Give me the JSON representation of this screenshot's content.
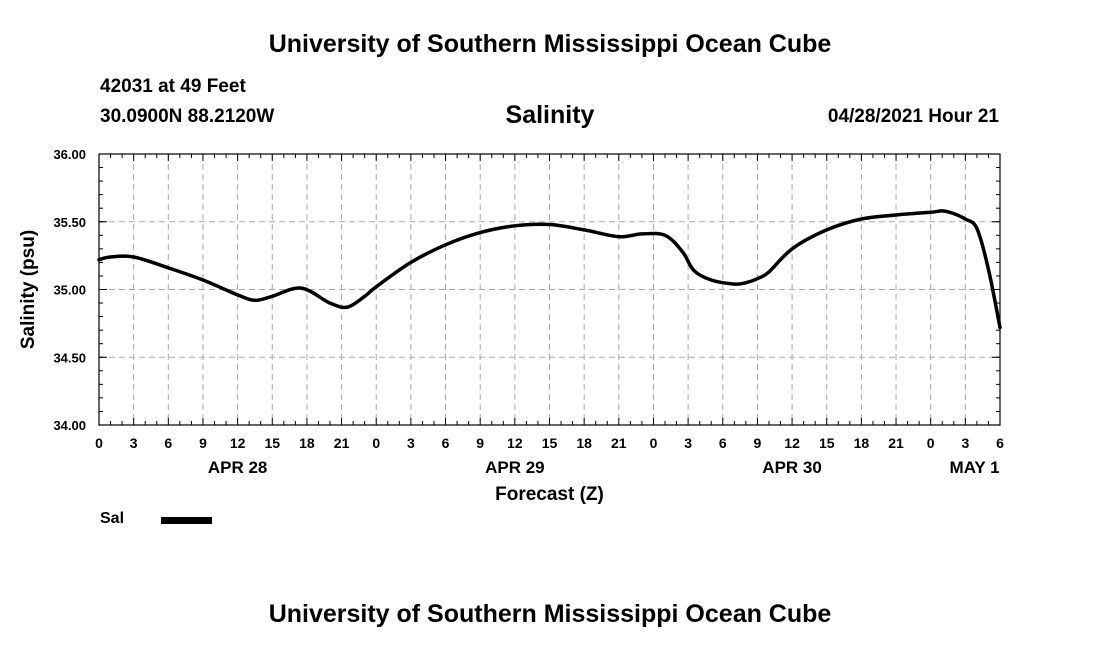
{
  "header": {
    "title": "University of Southern Mississippi Ocean Cube",
    "station": "42031 at 49 Feet",
    "location": "30.0900N  88.2120W",
    "chart_title": "Salinity",
    "datetime": "04/28/2021 Hour 21"
  },
  "footer": {
    "title": "University of Southern Mississippi Ocean Cube"
  },
  "legend": {
    "label": "Sal"
  },
  "colors": {
    "line": "#000000",
    "grid": "#aaaaaa",
    "background": "#ffffff"
  },
  "chart_data": {
    "type": "line",
    "title": "Salinity",
    "xlabel": "Forecast (Z)",
    "ylabel": "Salinity (psu)",
    "xlim_hours": [
      0,
      78
    ],
    "ylim": [
      34.0,
      36.0
    ],
    "y_ticks": [
      "34.00",
      "34.50",
      "35.00",
      "35.50",
      "36.00"
    ],
    "x_tick_labels": [
      "0",
      "3",
      "6",
      "9",
      "12",
      "15",
      "18",
      "21",
      "0",
      "3",
      "6",
      "9",
      "12",
      "15",
      "18",
      "21",
      "0",
      "3",
      "6",
      "9",
      "12",
      "15",
      "18",
      "21",
      "0",
      "3",
      "6"
    ],
    "date_labels": [
      {
        "label": "APR 28",
        "hour": 12
      },
      {
        "label": "APR 29",
        "hour": 36
      },
      {
        "label": "APR 30",
        "hour": 60
      },
      {
        "label": "MAY 1",
        "hour": 75.8
      }
    ],
    "grid": true,
    "series": [
      {
        "name": "Sal",
        "x": [
          0,
          1,
          3,
          6,
          9,
          12,
          13.5,
          15,
          17.5,
          20,
          21.5,
          23,
          24,
          27,
          30,
          33,
          36,
          39,
          42,
          45,
          47,
          49,
          50.5,
          51.5,
          53,
          55,
          56,
          57,
          58,
          60,
          63,
          66,
          69,
          72,
          73,
          74,
          75,
          76,
          77,
          78
        ],
        "y": [
          35.22,
          35.24,
          35.24,
          35.16,
          35.07,
          34.96,
          34.92,
          34.95,
          35.01,
          34.9,
          34.87,
          34.95,
          35.02,
          35.2,
          35.33,
          35.42,
          35.47,
          35.48,
          35.44,
          35.39,
          35.41,
          35.4,
          35.28,
          35.14,
          35.07,
          35.04,
          35.05,
          35.08,
          35.13,
          35.3,
          35.44,
          35.52,
          35.55,
          35.57,
          35.58,
          35.56,
          35.52,
          35.45,
          35.15,
          34.72
        ]
      }
    ]
  }
}
